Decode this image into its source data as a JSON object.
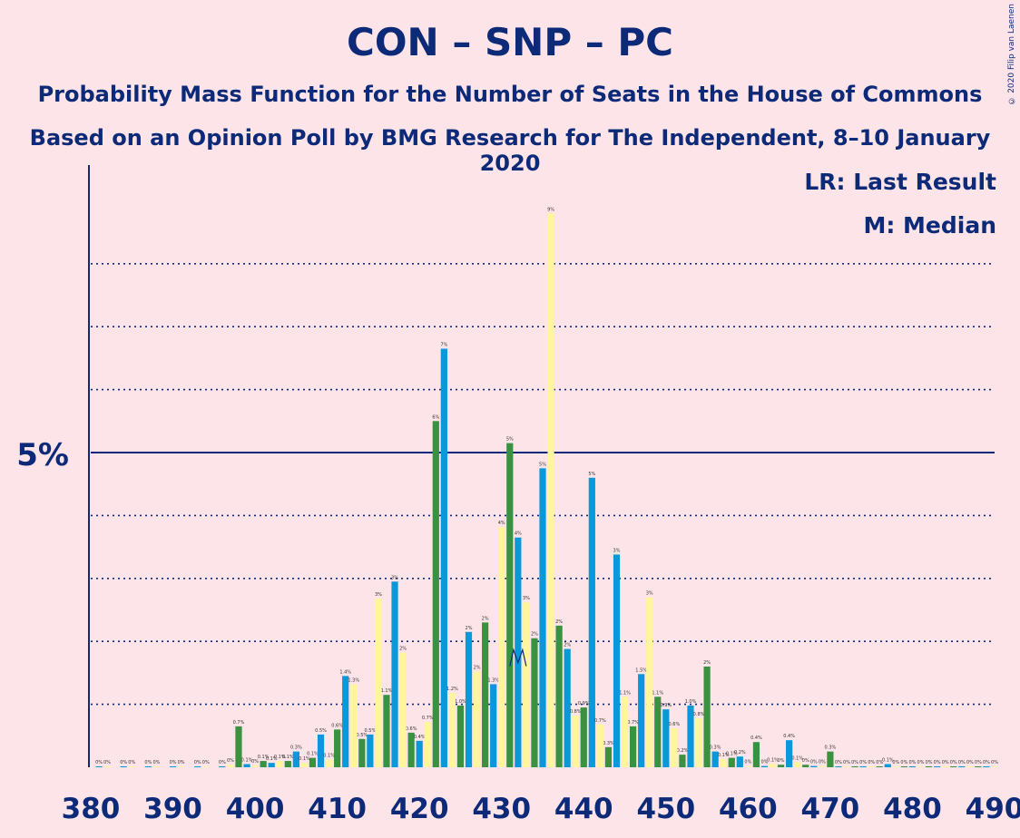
{
  "title": "CON – SNP – PC",
  "subtitle1": "Probability Mass Function for the Number of Seats in the House of Commons",
  "subtitle2": "Based on an Opinion Poll by BMG Research for The Independent, 8–10 January 2020",
  "copyright": "© 2020 Filip van Laenen",
  "legend": {
    "lr": "LR: Last Result",
    "median": "M: Median"
  },
  "colors": {
    "background": "#fde4e8",
    "axis": "#0c2a78",
    "green": "#3a9140",
    "blue": "#0a98d8",
    "yellow": "#fff59a"
  },
  "chart_data": {
    "type": "bar",
    "xlabel": "",
    "ylabel": "",
    "x_ticks": [
      380,
      390,
      400,
      410,
      420,
      430,
      440,
      450,
      460,
      470,
      480,
      490
    ],
    "y_ticks": [
      {
        "value": 5,
        "label": "5%"
      }
    ],
    "xlim": [
      380,
      490
    ],
    "ylim": [
      0,
      9.5
    ],
    "grid": "dotted horizontal lines every 1%",
    "median_seat": 432,
    "series": [
      {
        "color": "green",
        "values": [
          [
            398,
            0.65
          ],
          [
            401,
            0.1
          ],
          [
            404,
            0.1
          ],
          [
            407,
            0.15
          ],
          [
            410,
            0.6
          ],
          [
            413,
            0.45
          ],
          [
            416,
            1.15
          ],
          [
            419,
            0.55
          ],
          [
            422,
            5.5
          ],
          [
            425,
            0.98
          ],
          [
            428,
            2.3
          ],
          [
            431,
            5.15
          ],
          [
            434,
            2.05
          ],
          [
            437,
            2.25
          ],
          [
            440,
            0.95
          ],
          [
            443,
            0.32
          ],
          [
            446,
            0.65
          ],
          [
            449,
            1.12
          ],
          [
            452,
            0.2
          ],
          [
            455,
            1.6
          ],
          [
            458,
            0.15
          ],
          [
            461,
            0.4
          ],
          [
            464,
            0.04
          ],
          [
            467,
            0.04
          ],
          [
            470,
            0.25
          ],
          [
            473,
            0.01
          ],
          [
            476,
            0.01
          ],
          [
            479,
            0.01
          ],
          [
            482,
            0.01
          ],
          [
            485,
            0.01
          ],
          [
            488,
            0.01
          ]
        ]
      },
      {
        "color": "blue",
        "values": [
          [
            381,
            0.01
          ],
          [
            384,
            0.01
          ],
          [
            387,
            0.01
          ],
          [
            390,
            0.01
          ],
          [
            393,
            0.01
          ],
          [
            396,
            0.01
          ],
          [
            399,
            0.05
          ],
          [
            402,
            0.07
          ],
          [
            405,
            0.25
          ],
          [
            408,
            0.52
          ],
          [
            411,
            1.45
          ],
          [
            414,
            0.52
          ],
          [
            417,
            2.95
          ],
          [
            420,
            0.42
          ],
          [
            423,
            6.65
          ],
          [
            426,
            2.15
          ],
          [
            429,
            1.32
          ],
          [
            432,
            3.65
          ],
          [
            435,
            4.75
          ],
          [
            438,
            1.88
          ],
          [
            441,
            4.6
          ],
          [
            444,
            3.38
          ],
          [
            447,
            1.48
          ],
          [
            450,
            0.92
          ],
          [
            453,
            0.98
          ],
          [
            456,
            0.25
          ],
          [
            459,
            0.17
          ],
          [
            462,
            0.02
          ],
          [
            465,
            0.43
          ],
          [
            468,
            0.02
          ],
          [
            471,
            0.01
          ],
          [
            474,
            0.01
          ],
          [
            477,
            0.05
          ],
          [
            480,
            0.01
          ],
          [
            483,
            0.01
          ],
          [
            486,
            0.01
          ],
          [
            489,
            0.01
          ]
        ]
      },
      {
        "color": "yellow",
        "values": [
          [
            382,
            0.01
          ],
          [
            385,
            0.01
          ],
          [
            388,
            0.01
          ],
          [
            391,
            0.01
          ],
          [
            394,
            0.01
          ],
          [
            397,
            0.04
          ],
          [
            400,
            0.03
          ],
          [
            403,
            0.1
          ],
          [
            406,
            0.07
          ],
          [
            409,
            0.12
          ],
          [
            412,
            1.32
          ],
          [
            415,
            2.68
          ],
          [
            418,
            1.82
          ],
          [
            421,
            0.72
          ],
          [
            424,
            1.18
          ],
          [
            427,
            1.52
          ],
          [
            430,
            3.82
          ],
          [
            433,
            2.62
          ],
          [
            436,
            8.8
          ],
          [
            439,
            0.82
          ],
          [
            442,
            0.68
          ],
          [
            445,
            1.12
          ],
          [
            448,
            2.7
          ],
          [
            451,
            0.62
          ],
          [
            454,
            0.78
          ],
          [
            457,
            0.13
          ],
          [
            460,
            0.02
          ],
          [
            463,
            0.05
          ],
          [
            466,
            0.08
          ],
          [
            469,
            0.02
          ],
          [
            472,
            0.01
          ],
          [
            475,
            0.01
          ],
          [
            478,
            0.01
          ],
          [
            481,
            0.01
          ],
          [
            484,
            0.01
          ],
          [
            487,
            0.01
          ],
          [
            490,
            0.01
          ]
        ]
      }
    ]
  }
}
